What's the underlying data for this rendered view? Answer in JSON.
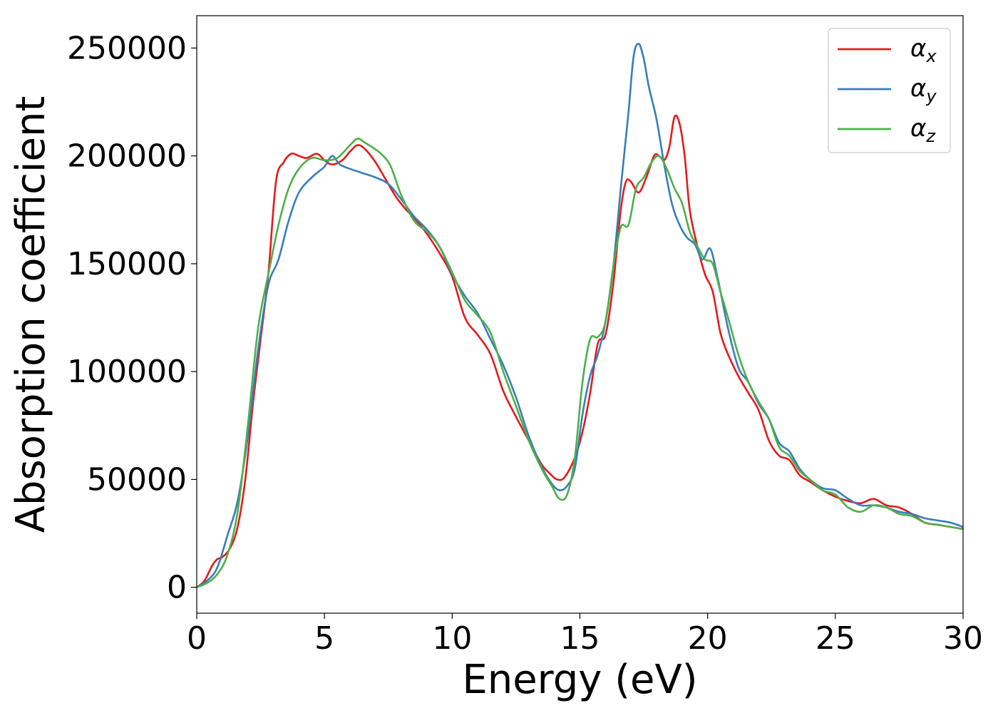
{
  "chart_data": {
    "type": "line",
    "title": "",
    "xlabel": "Energy (eV)",
    "ylabel": "Absorption coefficient",
    "xlim": [
      0,
      30
    ],
    "ylim": [
      -12000,
      265000
    ],
    "xticks": [
      0,
      5,
      10,
      15,
      20,
      25,
      30
    ],
    "yticks": [
      0,
      50000,
      100000,
      150000,
      200000,
      250000
    ],
    "xtick_labels": [
      "0",
      "5",
      "10",
      "15",
      "20",
      "25",
      "30"
    ],
    "ytick_labels": [
      "0",
      "50000",
      "100000",
      "150000",
      "200000",
      "250000"
    ],
    "grid": false,
    "legend_position": "top-right",
    "series": [
      {
        "name": "α",
        "subscript": "x",
        "color": "#e41a1c",
        "x": [
          0,
          0.3,
          0.6,
          0.8,
          1.0,
          1.3,
          1.6,
          1.9,
          2.2,
          2.5,
          2.8,
          3.1,
          3.4,
          3.7,
          4.0,
          4.3,
          4.7,
          5.0,
          5.3,
          5.7,
          6.0,
          6.3,
          6.6,
          7.0,
          7.4,
          7.8,
          8.2,
          8.6,
          9.0,
          9.5,
          10.0,
          10.5,
          11.0,
          11.5,
          12.0,
          12.5,
          13.0,
          13.5,
          13.8,
          14.1,
          14.4,
          14.8,
          15.1,
          15.4,
          15.7,
          16.0,
          16.3,
          16.6,
          16.8,
          17.0,
          17.3,
          17.6,
          17.9,
          18.1,
          18.3,
          18.5,
          18.7,
          18.9,
          19.1,
          19.3,
          19.6,
          19.9,
          20.2,
          20.5,
          20.8,
          21.2,
          21.6,
          22.0,
          22.4,
          22.8,
          23.2,
          23.6,
          24.0,
          24.5,
          25.0,
          25.5,
          26.0,
          26.5,
          27.0,
          27.5,
          28.0,
          28.5,
          29.0,
          29.5,
          30.0
        ],
        "values": [
          0,
          3000,
          10000,
          13000,
          14000,
          18000,
          28000,
          50000,
          85000,
          115000,
          145000,
          188000,
          197000,
          201000,
          200000,
          199000,
          201000,
          198000,
          196000,
          198000,
          202000,
          205000,
          203000,
          197000,
          189000,
          181000,
          175000,
          170000,
          164000,
          155000,
          144000,
          125000,
          117000,
          108000,
          91000,
          79000,
          68000,
          57000,
          53000,
          50000,
          51000,
          60000,
          72000,
          90000,
          113000,
          117000,
          140000,
          175000,
          188000,
          188000,
          183000,
          190000,
          200000,
          200000,
          198000,
          204000,
          218000,
          215000,
          200000,
          175000,
          158000,
          145000,
          137000,
          118000,
          108000,
          98000,
          90000,
          82000,
          68000,
          61000,
          59000,
          52000,
          49000,
          45000,
          42000,
          40000,
          39000,
          41000,
          38000,
          37000,
          34000,
          30000,
          29000,
          28000,
          27000
        ]
      },
      {
        "name": "α",
        "subscript": "y",
        "color": "#377eb8",
        "x": [
          0,
          0.4,
          0.8,
          1.2,
          1.6,
          2.0,
          2.4,
          2.8,
          3.2,
          3.6,
          4.0,
          4.5,
          5.0,
          5.3,
          5.6,
          6.0,
          6.5,
          7.0,
          7.5,
          8.0,
          8.5,
          9.0,
          9.5,
          10.0,
          10.5,
          11.0,
          11.5,
          12.0,
          12.5,
          13.0,
          13.5,
          13.9,
          14.2,
          14.5,
          14.8,
          15.1,
          15.4,
          15.7,
          16.0,
          16.3,
          16.6,
          16.9,
          17.1,
          17.3,
          17.5,
          17.7,
          18.0,
          18.3,
          18.6,
          18.9,
          19.2,
          19.5,
          19.8,
          20.1,
          20.4,
          20.8,
          21.2,
          21.6,
          22.0,
          22.4,
          22.8,
          23.2,
          23.6,
          24.0,
          24.5,
          25.0,
          25.5,
          26.0,
          26.5,
          27.0,
          27.5,
          28.0,
          28.5,
          29.0,
          29.5,
          30.0
        ],
        "values": [
          0,
          3000,
          9000,
          24000,
          40000,
          70000,
          110000,
          140000,
          152000,
          170000,
          183000,
          190000,
          195000,
          200000,
          196000,
          194000,
          192000,
          190000,
          187000,
          180000,
          172000,
          166000,
          158000,
          145000,
          135000,
          127000,
          115000,
          103000,
          88000,
          70000,
          56000,
          48000,
          45000,
          47000,
          55000,
          80000,
          98000,
          108000,
          123000,
          148000,
          185000,
          220000,
          246000,
          252000,
          245000,
          232000,
          217000,
          196000,
          178000,
          168000,
          162000,
          159000,
          152000,
          157000,
          143000,
          120000,
          102000,
          95000,
          85000,
          78000,
          67000,
          63000,
          55000,
          50000,
          46000,
          45000,
          41000,
          38000,
          38000,
          37000,
          35000,
          34000,
          32000,
          31000,
          30000,
          28000
        ]
      },
      {
        "name": "α",
        "subscript": "z",
        "color": "#4daf4a",
        "x": [
          0,
          0.4,
          0.8,
          1.2,
          1.6,
          2.0,
          2.4,
          2.8,
          3.2,
          3.6,
          4.0,
          4.5,
          5.0,
          5.5,
          6.0,
          6.3,
          6.6,
          7.0,
          7.3,
          7.6,
          8.0,
          8.5,
          9.0,
          9.5,
          10.0,
          10.5,
          11.0,
          11.5,
          12.0,
          12.5,
          13.0,
          13.5,
          13.9,
          14.2,
          14.5,
          14.8,
          15.1,
          15.4,
          15.7,
          16.0,
          16.3,
          16.6,
          16.9,
          17.2,
          17.5,
          17.8,
          18.1,
          18.4,
          18.7,
          19.0,
          19.3,
          19.6,
          19.9,
          20.2,
          20.5,
          20.8,
          21.2,
          21.6,
          22.0,
          22.4,
          22.8,
          23.2,
          23.6,
          24.0,
          24.5,
          25.0,
          25.5,
          26.0,
          26.5,
          27.0,
          27.5,
          28.0,
          28.5,
          29.0,
          29.5,
          30.0
        ],
        "values": [
          0,
          2000,
          6000,
          15000,
          35000,
          75000,
          120000,
          145000,
          168000,
          185000,
          194000,
          199000,
          198000,
          199000,
          205000,
          208000,
          206000,
          203000,
          200000,
          195000,
          182000,
          170000,
          165000,
          158000,
          146000,
          133000,
          126000,
          118000,
          100000,
          84000,
          68000,
          55000,
          47000,
          41000,
          43000,
          60000,
          95000,
          115000,
          116000,
          123000,
          148000,
          167000,
          168000,
          185000,
          190000,
          197000,
          200000,
          194000,
          185000,
          178000,
          165000,
          158000,
          152000,
          150000,
          137000,
          125000,
          108000,
          95000,
          86000,
          78000,
          65000,
          61000,
          54000,
          50000,
          45000,
          43000,
          37000,
          35000,
          38000,
          37000,
          34000,
          33000,
          30000,
          29000,
          28000,
          27000
        ]
      }
    ]
  }
}
